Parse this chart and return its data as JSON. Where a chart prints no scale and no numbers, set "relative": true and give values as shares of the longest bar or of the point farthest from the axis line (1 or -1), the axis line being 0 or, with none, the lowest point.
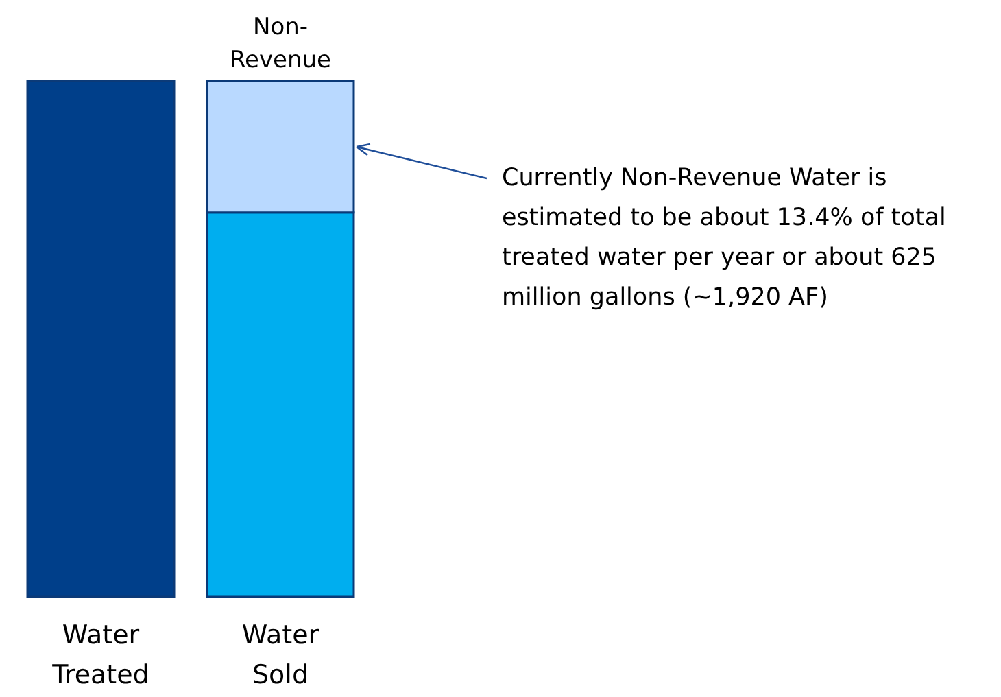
{
  "chart_data": {
    "type": "bar",
    "stacked": true,
    "relative": true,
    "categories": [
      "Water Treated",
      "Water Sold"
    ],
    "series": [
      {
        "colors": [
          "#003f8a",
          "#00aeef"
        ],
        "color": "#00aeef",
        "values": [
          1,
          0.745
        ]
      },
      {
        "name": "Non-Revenue",
        "color": "#b9d9ff",
        "values": [
          null,
          0.255
        ]
      }
    ],
    "annotations": [
      "Currently Non-Revenue Water is estimated to be about 13.4% of total treated water per year or about 625 million gallons (~1,920 AF)"
    ]
  }
}
